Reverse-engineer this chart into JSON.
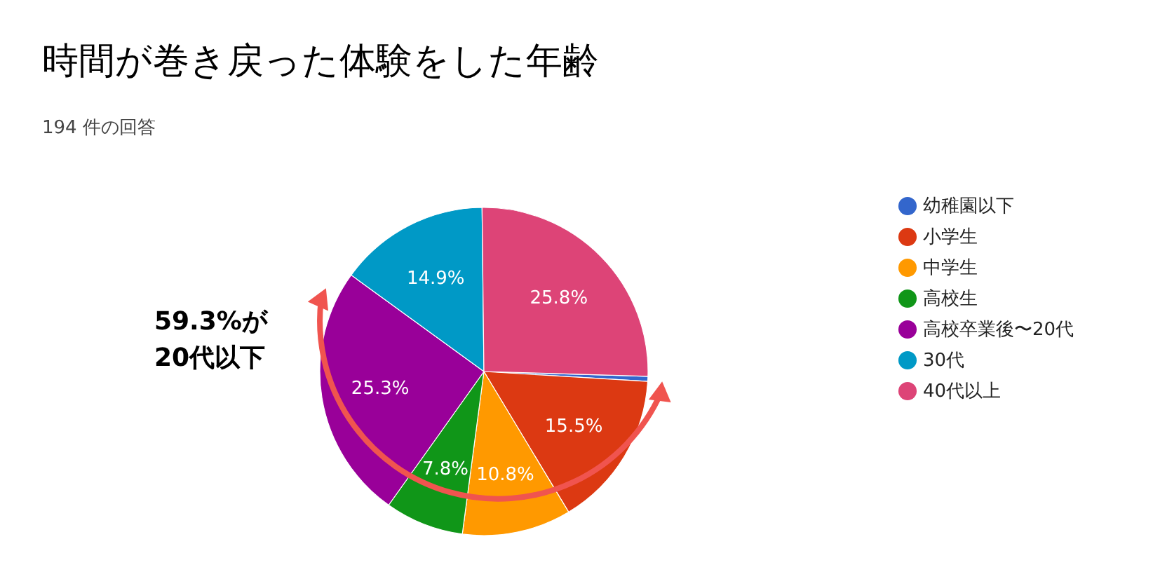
{
  "chart_data": {
    "type": "pie",
    "title": "時間が巻き戻った体験をした年齢",
    "subtitle": "194 件の回答",
    "categories": [
      "幼稚園以下",
      "小学生",
      "中学生",
      "高校生",
      "高校卒業後〜20代",
      "30代",
      "40代以上"
    ],
    "values": [
      0.5,
      15.5,
      10.8,
      7.8,
      25.3,
      14.9,
      25.8
    ],
    "value_labels": [
      null,
      "15.5%",
      "10.8%",
      "7.8%",
      "25.3%",
      "14.9%",
      "25.8%"
    ],
    "colors": [
      "#3366cc",
      "#dc3912",
      "#ff9900",
      "#109618",
      "#990099",
      "#0099c6",
      "#dd4477"
    ],
    "legend": "right",
    "annotations": [
      "59.3%が\n20代以下"
    ]
  }
}
